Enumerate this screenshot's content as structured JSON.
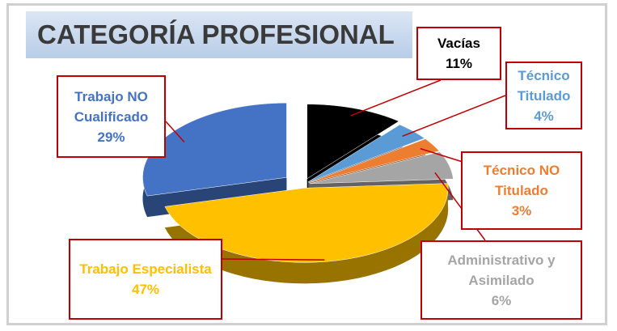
{
  "chart_data": {
    "type": "pie",
    "title": "CATEGORÍA PROFESIONAL",
    "categories": [
      "Vacías",
      "Técnico Titulado",
      "Técnico NO Titulado",
      "Administrativo y Asimilado",
      "Trabajo Especialista",
      "Trabajo NO Cualificado"
    ],
    "values": [
      11,
      4,
      3,
      6,
      47,
      29
    ],
    "value_labels": [
      "11%",
      "4%",
      "3%",
      "6%",
      "47%",
      "29%"
    ],
    "colors": [
      "#000000",
      "#5b9bd5",
      "#ed7d31",
      "#a5a5a5",
      "#ffc000",
      "#4472c4"
    ]
  }
}
